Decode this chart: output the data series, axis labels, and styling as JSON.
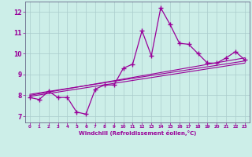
{
  "xlabel": "Windchill (Refroidissement éolien,°C)",
  "background_color": "#cceee8",
  "line_color": "#990099",
  "grid_color": "#aacccc",
  "xlim": [
    -0.5,
    23.5
  ],
  "ylim": [
    6.7,
    12.5
  ],
  "yticks": [
    7,
    8,
    9,
    10,
    11,
    12
  ],
  "xticks": [
    0,
    1,
    2,
    3,
    4,
    5,
    6,
    7,
    8,
    9,
    10,
    11,
    12,
    13,
    14,
    15,
    16,
    17,
    18,
    19,
    20,
    21,
    22,
    23
  ],
  "main_x": [
    0,
    1,
    2,
    3,
    4,
    5,
    6,
    7,
    8,
    9,
    10,
    11,
    12,
    13,
    14,
    15,
    16,
    17,
    18,
    19,
    20,
    21,
    22,
    23
  ],
  "main_y": [
    7.9,
    7.8,
    8.2,
    7.9,
    7.9,
    7.2,
    7.1,
    8.3,
    8.5,
    8.5,
    9.3,
    9.5,
    11.1,
    9.9,
    12.2,
    11.4,
    10.5,
    10.45,
    10.0,
    9.55,
    9.55,
    9.8,
    10.1,
    9.7
  ],
  "trend1_x": [
    0,
    23
  ],
  "trend1_y": [
    8.05,
    9.65
  ],
  "trend2_x": [
    0,
    23
  ],
  "trend2_y": [
    8.0,
    9.8
  ],
  "trend3_x": [
    0,
    23
  ],
  "trend3_y": [
    7.95,
    9.55
  ]
}
